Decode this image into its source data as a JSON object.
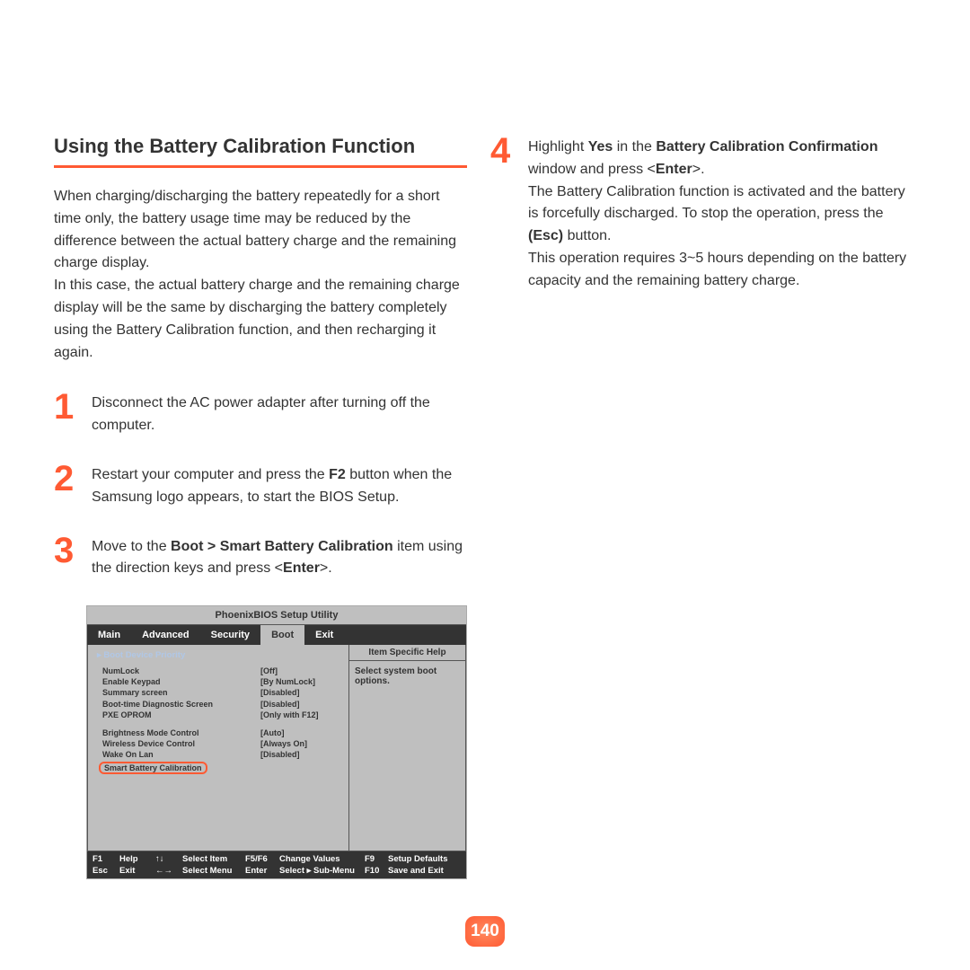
{
  "colors": {
    "accent": "#ff5a33",
    "text": "#333333",
    "bios_bg": "#bfbfbf",
    "bios_dark": "#333333",
    "bios_link": "#b0c7e6"
  },
  "page_number": "140",
  "heading": "Using the Battery Calibration Function",
  "intro_p1": "When charging/discharging the battery repeatedly for a short time only, the battery usage time may be reduced by the difference between the actual battery charge and the remaining charge display.",
  "intro_p2": "In this case, the actual battery charge and the remaining charge display will be the same by discharging the battery completely using the Battery Calibration function, and then recharging it again.",
  "steps": {
    "s1": {
      "num": "1",
      "html": "Disconnect the AC power adapter after turning off the computer."
    },
    "s2": {
      "num": "2",
      "html": "Restart your computer and press the <b>F2</b> button when the Samsung logo appears, to start the BIOS Setup."
    },
    "s3": {
      "num": "3",
      "html": "Move to the <b>Boot > Smart Battery Calibration</b> item using the direction keys and press &lt;<b>Enter</b>&gt;."
    },
    "s4": {
      "num": "4",
      "html": "Highlight <b>Yes</b> in the <b>Battery Calibration Confirmation</b> window and press &lt;<b>Enter</b>&gt;.<br>The Battery Calibration function is activated and the battery is forcefully discharged. To stop the operation, press the <b>(Esc)</b> button.<br>This operation requires 3~5 hours depending on the battery capacity and the remaining battery charge."
    }
  },
  "bios": {
    "title": "PhoenixBIOS Setup Utility",
    "tabs": [
      "Main",
      "Advanced",
      "Security",
      "Boot",
      "Exit"
    ],
    "selected_tab": "Boot",
    "right_title": "Item Specific Help",
    "right_help": "Select system boot options.",
    "boot_priority": "Boot Device Priority",
    "rows_a": [
      {
        "lbl": "NumLock",
        "val": "[Off]"
      },
      {
        "lbl": "Enable Keypad",
        "val": "[By NumLock]"
      },
      {
        "lbl": "Summary screen",
        "val": "[Disabled]"
      },
      {
        "lbl": "Boot-time Diagnostic Screen",
        "val": "[Disabled]"
      },
      {
        "lbl": "PXE OPROM",
        "val": "[Only with F12]"
      }
    ],
    "rows_b": [
      {
        "lbl": "Brightness Mode Control",
        "val": "[Auto]"
      },
      {
        "lbl": "Wireless Device Control",
        "val": "[Always On]"
      },
      {
        "lbl": "Wake On Lan",
        "val": "[Disabled]"
      }
    ],
    "highlight": "Smart Battery Calibration",
    "footer": {
      "r1": [
        "F1",
        "Help",
        "↑↓",
        "Select Item",
        "F5/F6",
        "Change Values",
        "F9",
        "Setup Defaults"
      ],
      "r2": [
        "Esc",
        "Exit",
        "←→",
        "Select Menu",
        "Enter",
        "Select ▸ Sub-Menu",
        "F10",
        "Save and Exit"
      ]
    }
  }
}
